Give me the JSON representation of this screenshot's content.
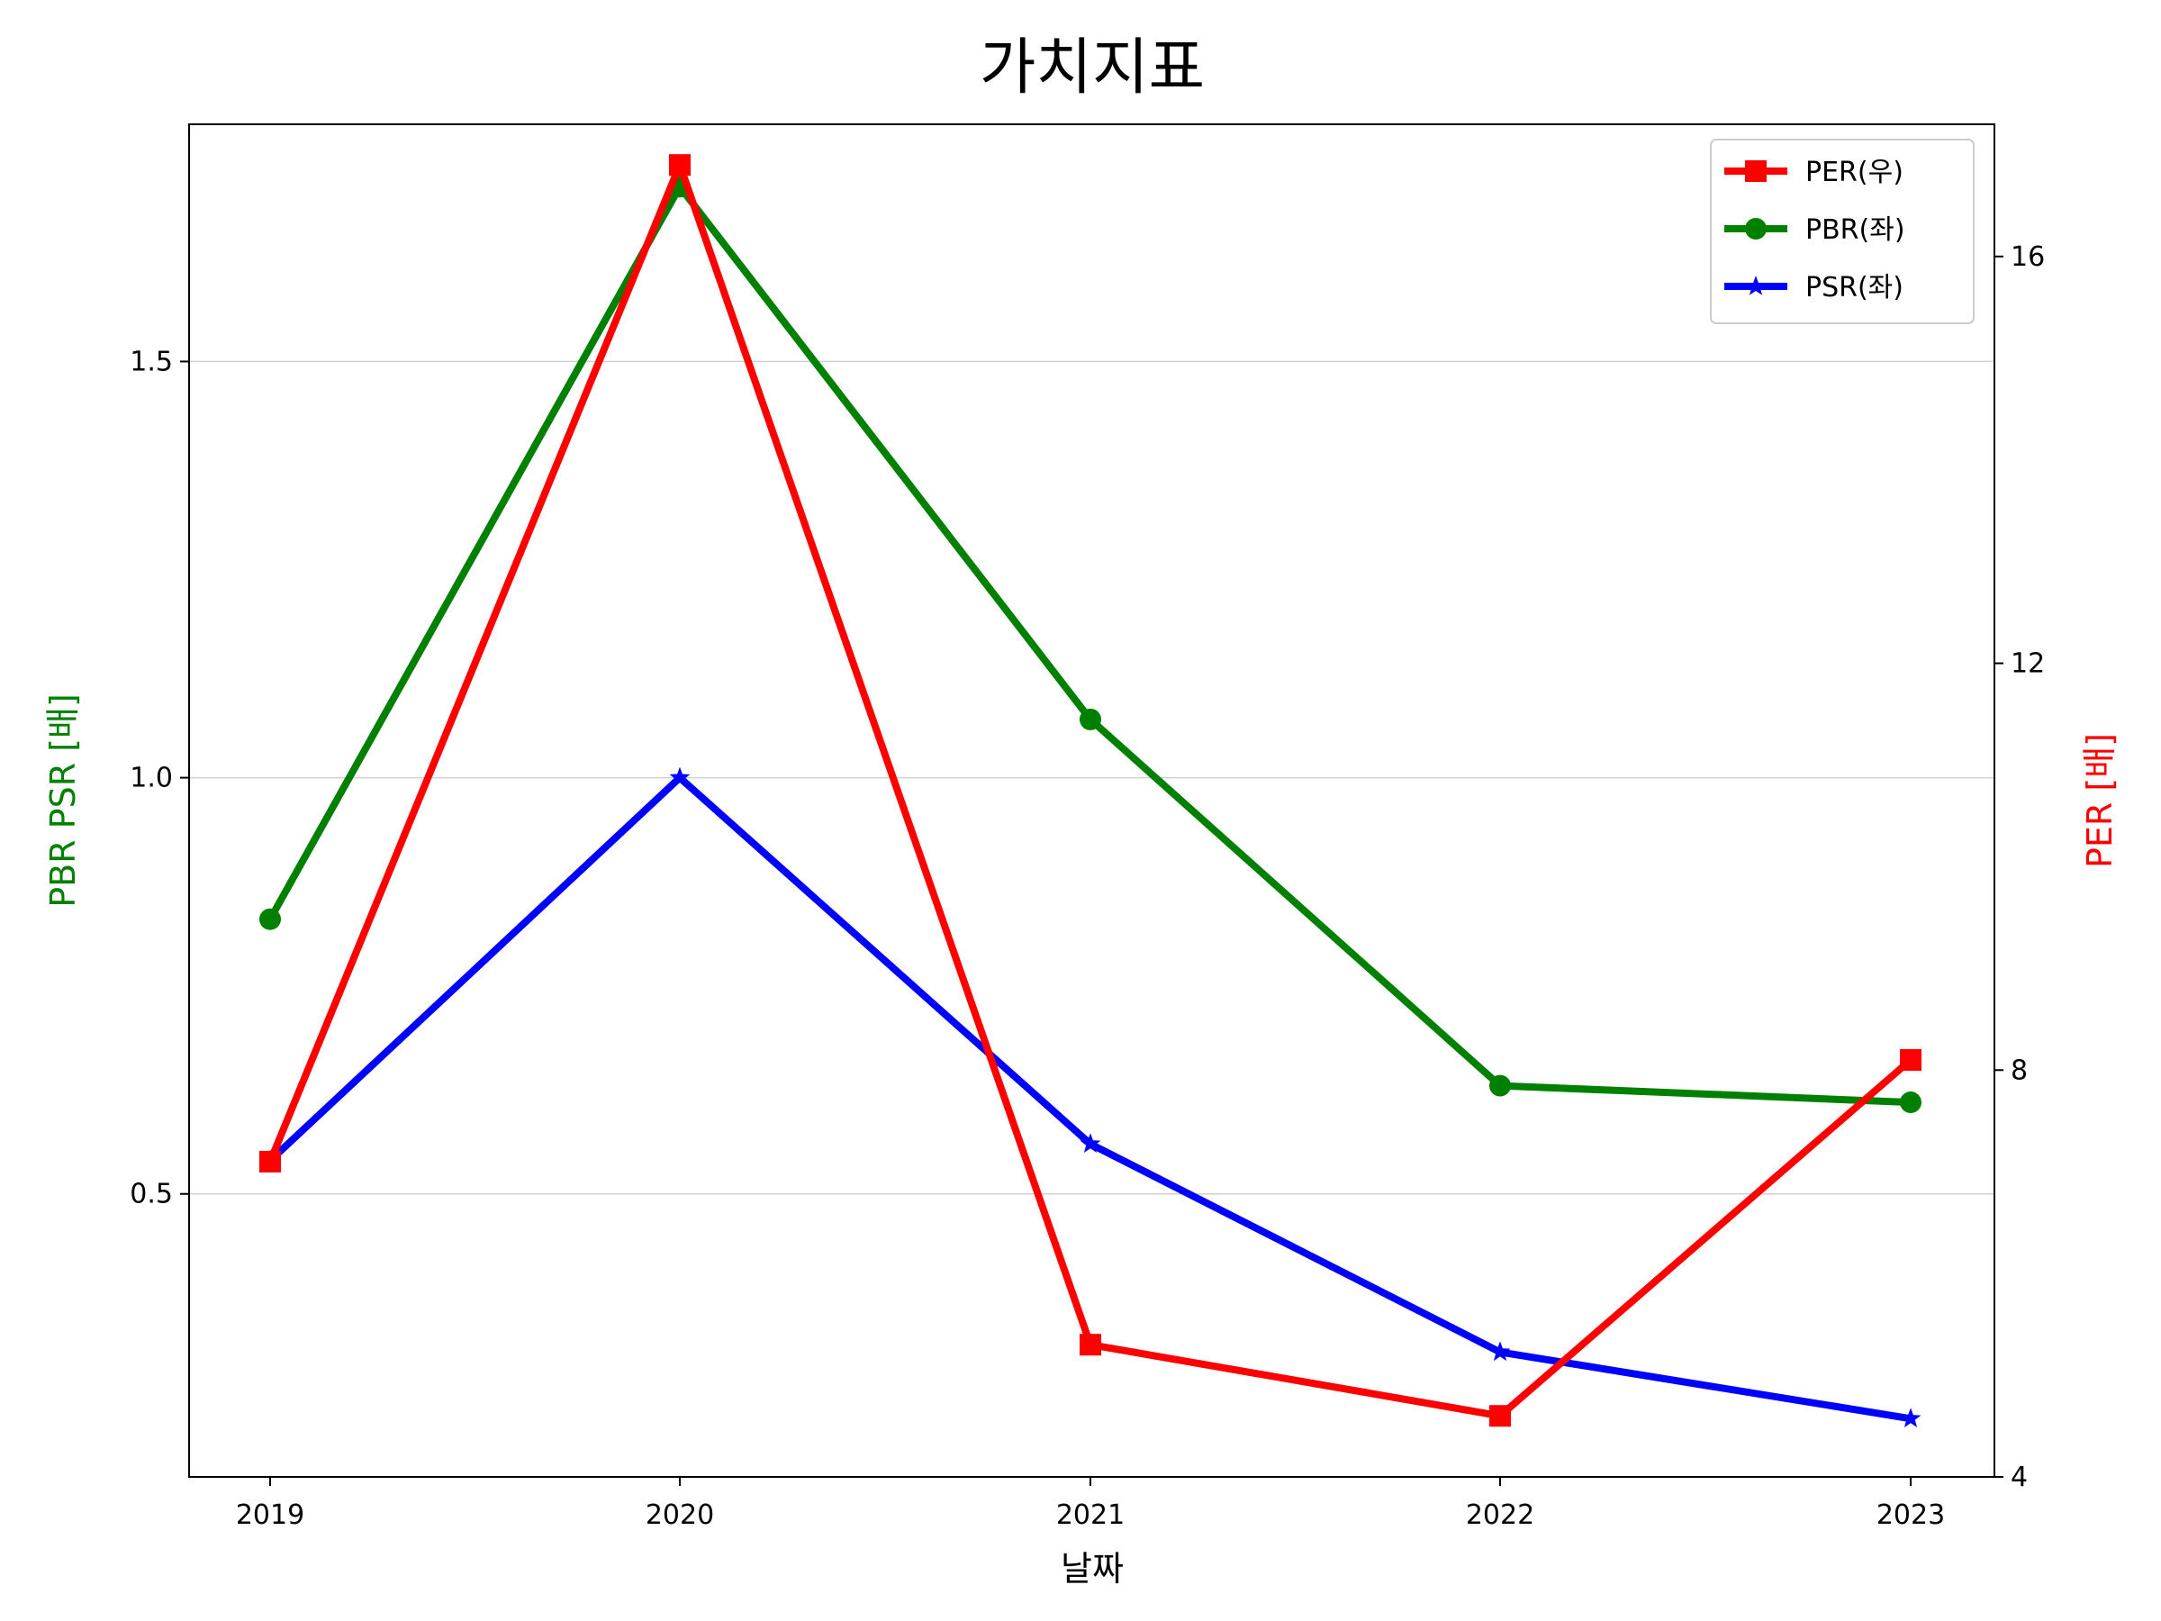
{
  "chart_data": {
    "type": "line",
    "title": "가치지표",
    "xlabel": "날짜",
    "ylabel_left": "PBR PSR [배]",
    "ylabel_right": "PER [배]",
    "x": [
      "2019",
      "2020",
      "2021",
      "2022",
      "2023"
    ],
    "left_axis": {
      "ylim": [
        0.16,
        1.785
      ],
      "ticks": [
        "0.5",
        "1.0",
        "1.5"
      ],
      "tick_values": [
        0.5,
        1.0,
        1.5
      ]
    },
    "right_axis": {
      "ylim": [
        4.0,
        17.3
      ],
      "ticks": [
        "4",
        "8",
        "12",
        "16"
      ],
      "tick_values": [
        4,
        8,
        12,
        16
      ]
    },
    "series": [
      {
        "name": "PER(우)",
        "axis": "right",
        "color": "#ff0000",
        "marker": "square",
        "values": [
          7.1,
          16.9,
          5.3,
          4.6,
          8.1
        ]
      },
      {
        "name": "PBR(좌)",
        "axis": "left",
        "color": "#008000",
        "marker": "circle",
        "values": [
          0.83,
          1.71,
          1.07,
          0.63,
          0.61
        ]
      },
      {
        "name": "PSR(좌)",
        "axis": "left",
        "color": "#0000ff",
        "marker": "star",
        "values": [
          0.54,
          1.0,
          0.56,
          0.31,
          0.23
        ]
      }
    ],
    "grid": "horizontal, left axis",
    "legend": "top-right",
    "colors": {
      "left_axis_label": "#008000",
      "right_axis_label": "#ff0000"
    }
  }
}
